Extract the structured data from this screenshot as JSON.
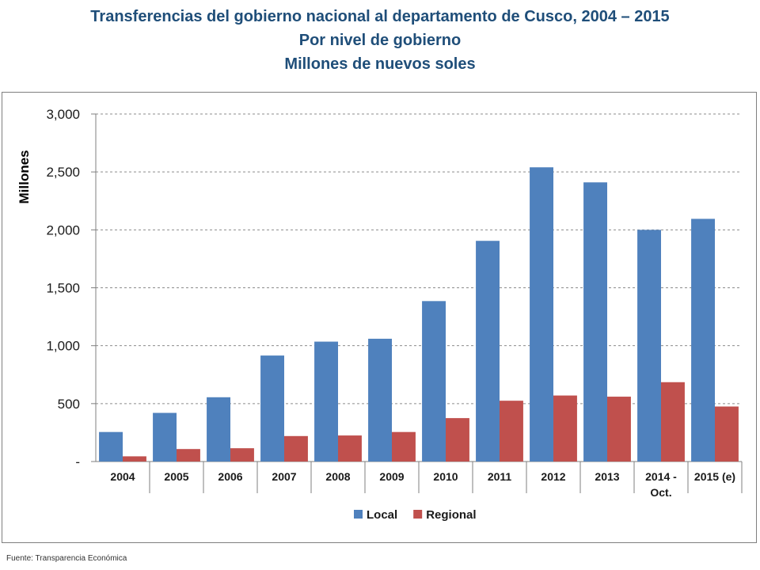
{
  "header": {
    "title": "Transferencias del gobierno nacional al departamento de Cusco, 2004 – 2015",
    "subtitle": "Por nivel de gobierno",
    "subtitle2": "Millones de nuevos soles"
  },
  "footer": {
    "source": "Fuente: Transparencia Económica"
  },
  "chart_data": {
    "type": "bar",
    "title": "Transferencias del gobierno nacional al departamento de Cusco, 2004 – 2015",
    "xlabel": "",
    "ylabel": "Millones",
    "ylim": [
      0,
      3000
    ],
    "yticks": [
      0,
      500,
      1000,
      1500,
      2000,
      2500,
      3000
    ],
    "ytick_labels": [
      "-",
      "500",
      "1,000",
      "1,500",
      "2,000",
      "2,500",
      "3,000"
    ],
    "grid": true,
    "legend_position": "bottom",
    "categories": [
      [
        "2004"
      ],
      [
        "2005"
      ],
      [
        "2006"
      ],
      [
        "2007"
      ],
      [
        "2008"
      ],
      [
        "2009"
      ],
      [
        "2010"
      ],
      [
        "2011"
      ],
      [
        "2012"
      ],
      [
        "2013"
      ],
      [
        "2014 -",
        "Oct."
      ],
      [
        "2015 (e)"
      ]
    ],
    "series": [
      {
        "name": "Local",
        "color": "#4f81bd",
        "values": [
          255,
          420,
          555,
          915,
          1035,
          1060,
          1385,
          1905,
          2540,
          2410,
          2000,
          2095
        ]
      },
      {
        "name": "Regional",
        "color": "#c0504d",
        "values": [
          45,
          108,
          115,
          220,
          225,
          255,
          375,
          525,
          570,
          560,
          685,
          475
        ]
      }
    ]
  }
}
